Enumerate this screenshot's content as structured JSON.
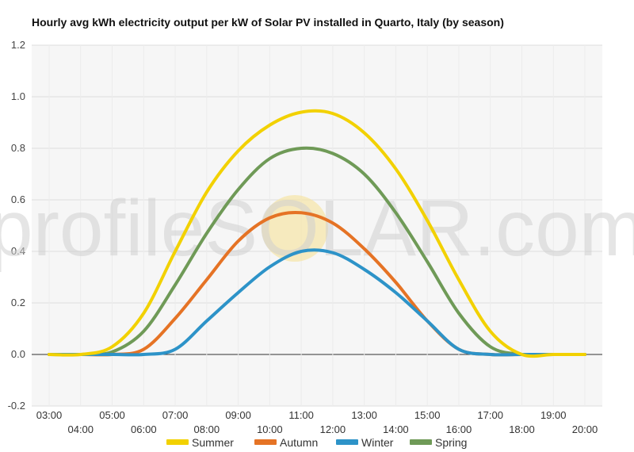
{
  "chart_data": {
    "type": "line",
    "title": "Hourly avg kWh electricity output per kW of Solar PV installed in Quarto, Italy (by season)",
    "watermark": "profileSOLAR.com",
    "xlabel": "",
    "ylabel": "",
    "ylim": [
      -0.2,
      1.2
    ],
    "yticks": [
      "-0.2",
      "0.0",
      "0.2",
      "0.4",
      "0.6",
      "0.8",
      "1.0",
      "1.2"
    ],
    "x": [
      "03:00",
      "04:00",
      "05:00",
      "06:00",
      "07:00",
      "08:00",
      "09:00",
      "10:00",
      "11:00",
      "12:00",
      "13:00",
      "14:00",
      "15:00",
      "16:00",
      "17:00",
      "18:00",
      "19:00",
      "20:00"
    ],
    "grid": true,
    "legend_position": "bottom",
    "colors": {
      "background": "#f6f6f6",
      "grid": "#dddddd",
      "zero_line": "#333333",
      "watermark_sun": "#f7e6a6"
    },
    "series": [
      {
        "name": "Summer",
        "color": "#f2d100",
        "values": [
          0.0,
          0.0,
          0.03,
          0.16,
          0.4,
          0.63,
          0.79,
          0.89,
          0.94,
          0.935,
          0.86,
          0.72,
          0.52,
          0.29,
          0.09,
          0.0,
          0.0,
          0.0
        ]
      },
      {
        "name": "Autumn",
        "color": "#e57325",
        "values": [
          0.0,
          0.0,
          0.0,
          0.02,
          0.14,
          0.29,
          0.44,
          0.53,
          0.55,
          0.51,
          0.41,
          0.28,
          0.13,
          0.02,
          0.0,
          0.0,
          0.0,
          0.0
        ]
      },
      {
        "name": "Winter",
        "color": "#2d93c8",
        "values": [
          0.0,
          0.0,
          0.0,
          0.0,
          0.02,
          0.13,
          0.24,
          0.34,
          0.4,
          0.395,
          0.33,
          0.24,
          0.13,
          0.02,
          0.0,
          0.0,
          0.0,
          0.0
        ]
      },
      {
        "name": "Spring",
        "color": "#6f9a57",
        "values": [
          0.0,
          0.0,
          0.01,
          0.09,
          0.27,
          0.47,
          0.64,
          0.76,
          0.8,
          0.78,
          0.7,
          0.55,
          0.36,
          0.16,
          0.03,
          0.0,
          0.0,
          0.0
        ]
      }
    ]
  }
}
